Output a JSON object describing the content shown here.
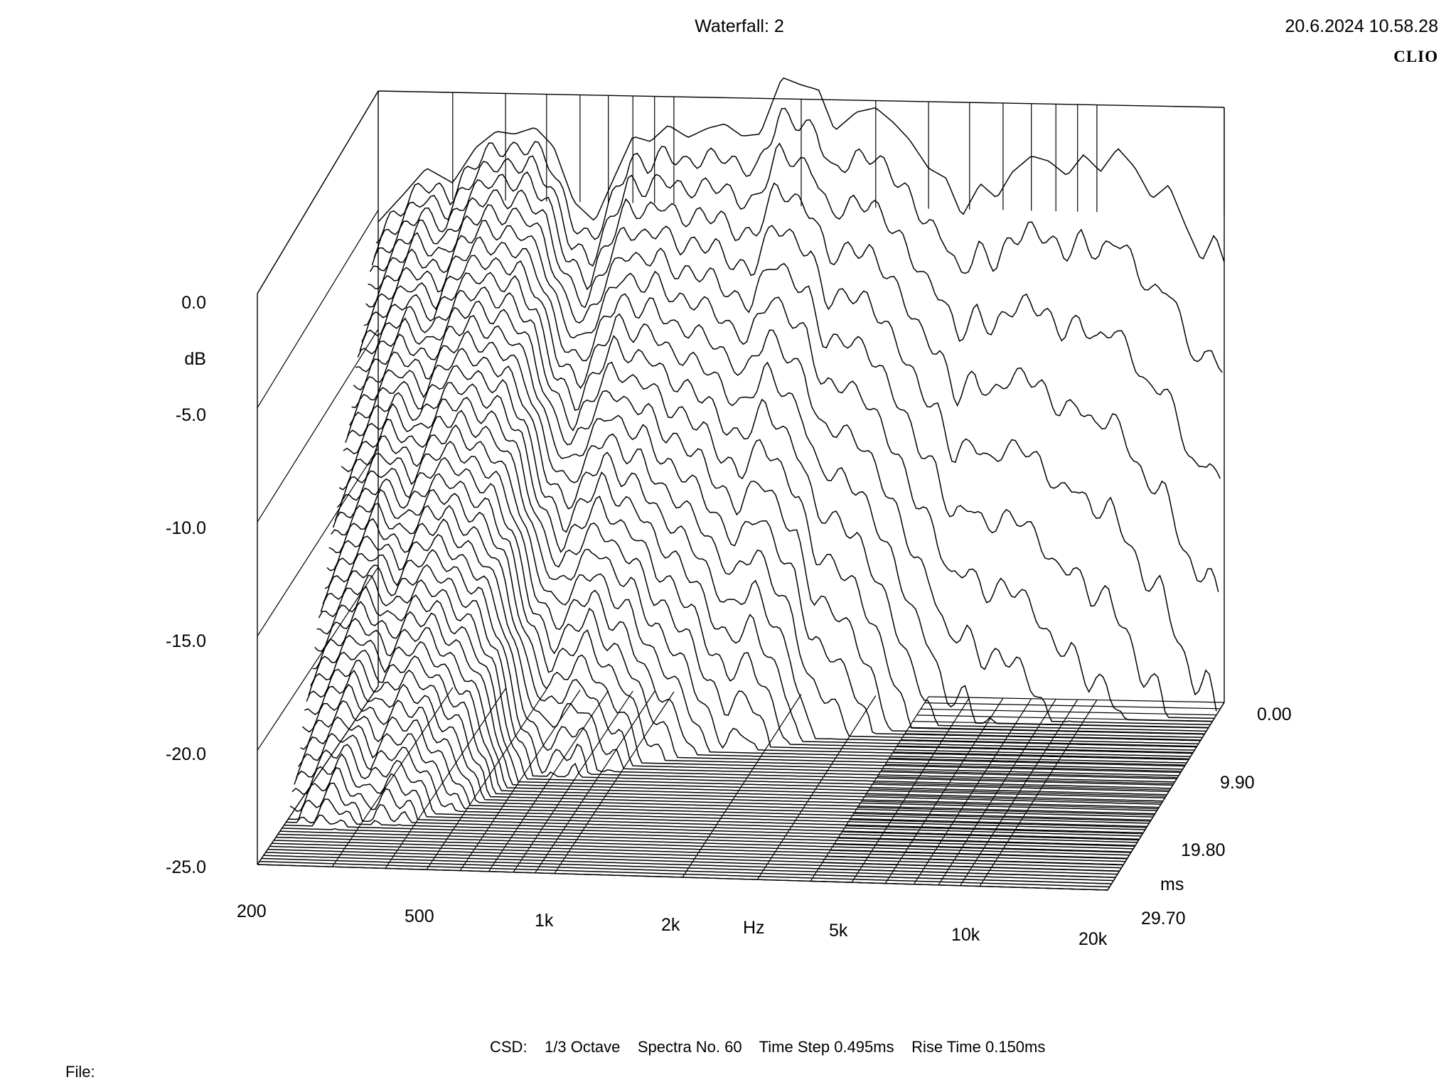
{
  "header": {
    "title": "Waterfall: 2",
    "timestamp": "20.6.2024 10.58.28",
    "brand": "CLIO"
  },
  "footer": {
    "csd_label": "CSD:",
    "octave": "1/3 Octave",
    "spectra": "Spectra No. 60",
    "time_step": "Time Step 0.495ms",
    "rise_time": "Rise Time 0.150ms",
    "file_label": "File:"
  },
  "chart_data": {
    "type": "waterfall",
    "title": "Waterfall: 2",
    "xlabel": "Hz",
    "ylabel": "dB",
    "zlabel": "ms",
    "x_scale": "log",
    "xlim": [
      200,
      20000
    ],
    "ylim": [
      -25,
      0
    ],
    "zlim": [
      0,
      29.7
    ],
    "x_ticks": [
      "200",
      "500",
      "1k",
      "2k",
      "5k",
      "10k",
      "20k"
    ],
    "x_tick_values": [
      200,
      500,
      1000,
      2000,
      5000,
      10000,
      20000
    ],
    "y_ticks": [
      "0.0",
      "-5.0",
      "-10.0",
      "-15.0",
      "-20.0",
      "-25.0"
    ],
    "y_tick_values": [
      0,
      -5,
      -10,
      -15,
      -20,
      -25
    ],
    "z_ticks": [
      "0.00",
      "9.90",
      "19.80",
      "29.70"
    ],
    "z_tick_values": [
      0,
      9.9,
      19.8,
      29.7
    ],
    "spectra_count": 60,
    "time_step_ms": 0.495,
    "rise_time_ms": 0.15,
    "octave_smoothing": "1/3 Octave",
    "first_spectrum": {
      "freq": [
        200,
        230,
        260,
        300,
        340,
        380,
        420,
        470,
        520,
        580,
        650,
        720,
        800,
        880,
        970,
        1080,
        1200,
        1320,
        1450,
        1600,
        1800,
        2000,
        2200,
        2400,
        2700,
        3000,
        3300,
        3600,
        4000,
        4400,
        4800,
        5300,
        5800,
        6300,
        7000,
        7700,
        8500,
        9300,
        10200,
        11200,
        12300,
        13500,
        14800,
        16200,
        17700,
        19000,
        20000
      ],
      "db": [
        -5.5,
        -4.3,
        -3.2,
        -3.8,
        -2.3,
        -1.6,
        -1.7,
        -1.4,
        -2.2,
        -4.5,
        -5.3,
        -3.5,
        -1.7,
        -1.9,
        -1.2,
        -1.7,
        -1.3,
        -1.1,
        -1.6,
        -1.5,
        0.9,
        0.6,
        0.4,
        -1.3,
        -0.5,
        -0.3,
        -0.9,
        -1.6,
        -2.8,
        -3.2,
        -4.8,
        -3.4,
        -4.0,
        -2.9,
        -2.2,
        -2.4,
        -3.0,
        -2.1,
        -2.8,
        -1.8,
        -2.6,
        -3.9,
        -3.3,
        -5.0,
        -6.5,
        -5.3,
        -6.5
      ]
    }
  }
}
